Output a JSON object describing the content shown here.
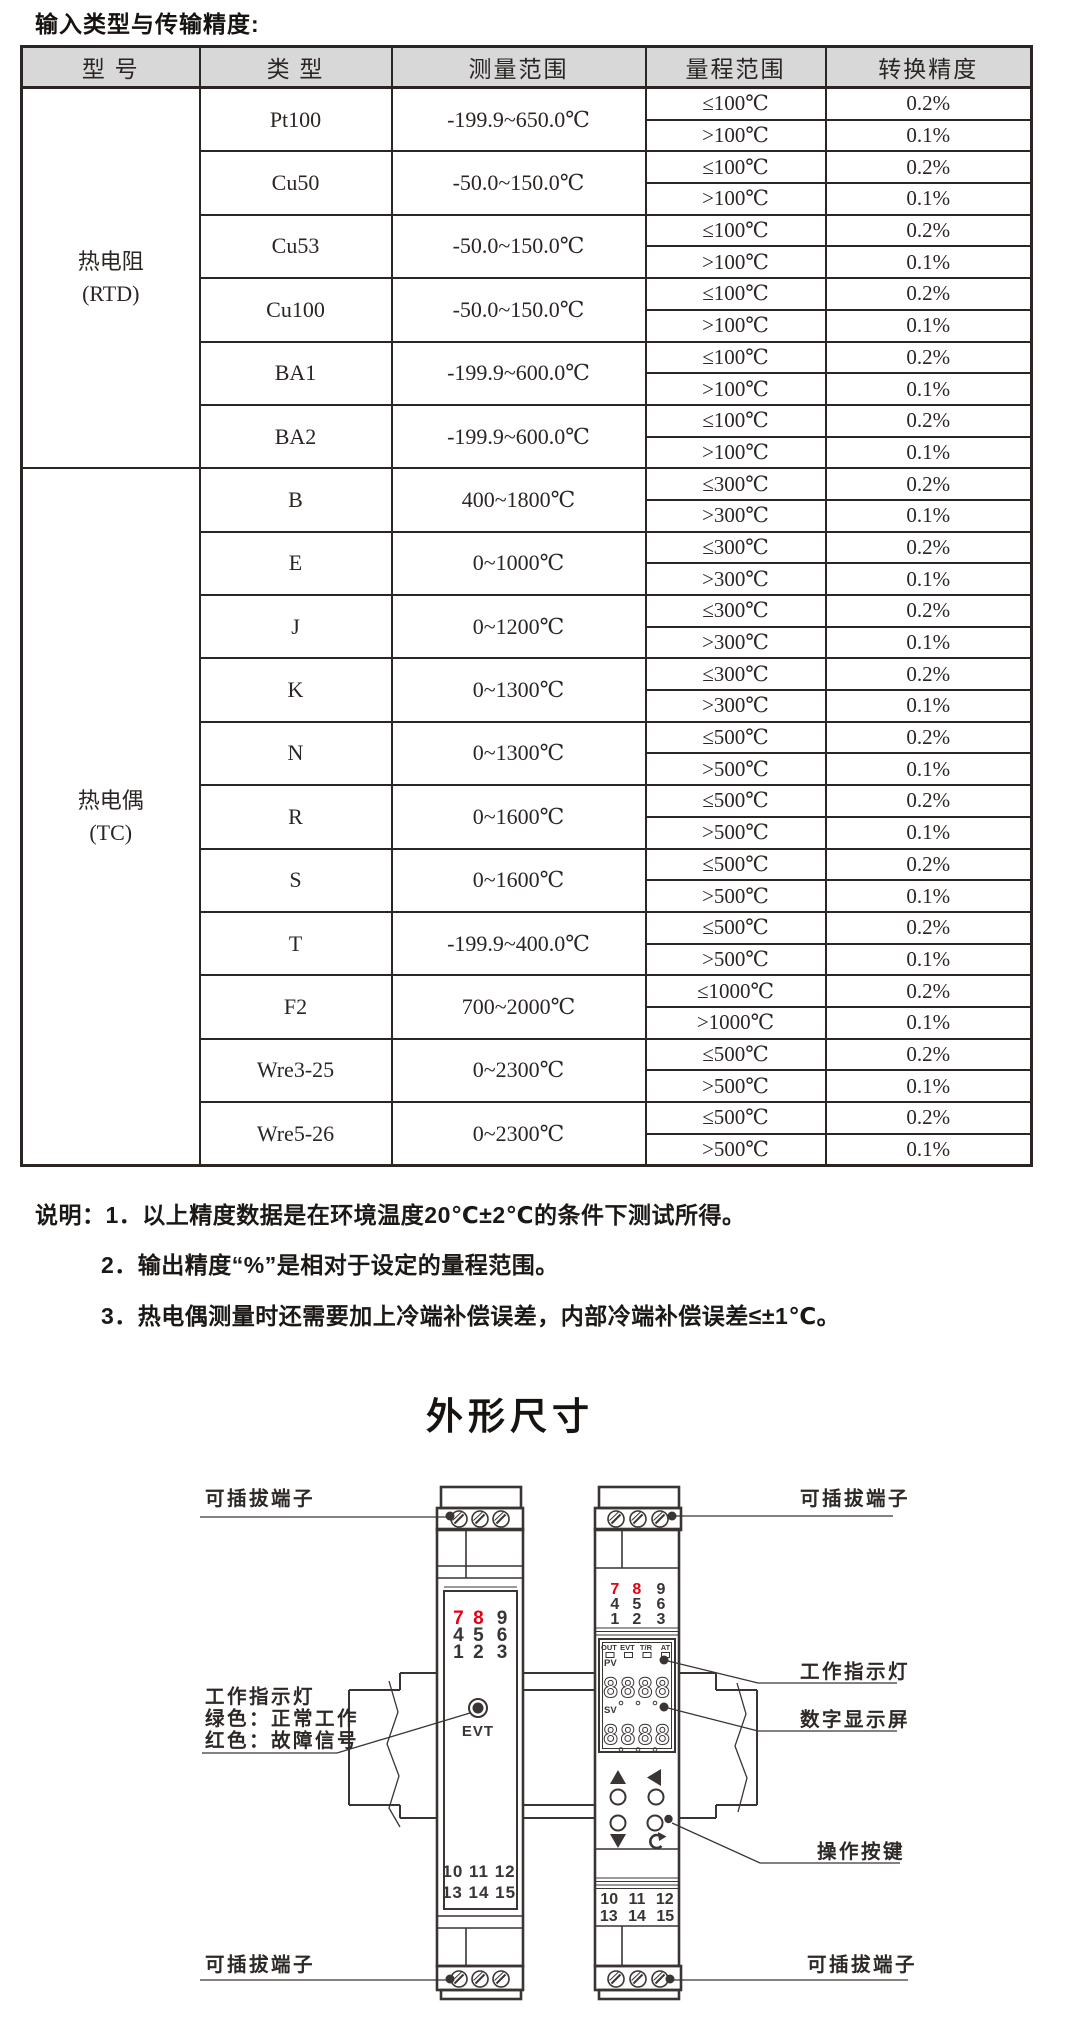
{
  "page": {
    "title": "输入类型与传输精度:",
    "section_title": "外形尺寸"
  },
  "colors": {
    "ink": "#3a3433",
    "accent_red": "#e60012",
    "table_header_bg": "#d8d8d8"
  },
  "table": {
    "headers": [
      "型 号",
      "类 型",
      "测量范围",
      "量程范围",
      "转换精度"
    ],
    "groups": [
      {
        "model": "热电阻\n(RTD)",
        "rows": [
          {
            "type": "Pt100",
            "range": "-199.9~650.0℃",
            "spans": [
              [
                "≤100℃",
                "0.2%"
              ],
              [
                ">100℃",
                "0.1%"
              ]
            ]
          },
          {
            "type": "Cu50",
            "range": "-50.0~150.0℃",
            "spans": [
              [
                "≤100℃",
                "0.2%"
              ],
              [
                ">100℃",
                "0.1%"
              ]
            ]
          },
          {
            "type": "Cu53",
            "range": "-50.0~150.0℃",
            "spans": [
              [
                "≤100℃",
                "0.2%"
              ],
              [
                ">100℃",
                "0.1%"
              ]
            ]
          },
          {
            "type": "Cu100",
            "range": "-50.0~150.0℃",
            "spans": [
              [
                "≤100℃",
                "0.2%"
              ],
              [
                ">100℃",
                "0.1%"
              ]
            ]
          },
          {
            "type": "BA1",
            "range": "-199.9~600.0℃",
            "spans": [
              [
                "≤100℃",
                "0.2%"
              ],
              [
                ">100℃",
                "0.1%"
              ]
            ]
          },
          {
            "type": "BA2",
            "range": "-199.9~600.0℃",
            "spans": [
              [
                "≤100℃",
                "0.2%"
              ],
              [
                ">100℃",
                "0.1%"
              ]
            ]
          }
        ]
      },
      {
        "model": "热电偶\n(TC)",
        "rows": [
          {
            "type": "B",
            "range": "400~1800℃",
            "spans": [
              [
                "≤300℃",
                "0.2%"
              ],
              [
                ">300℃",
                "0.1%"
              ]
            ]
          },
          {
            "type": "E",
            "range": "0~1000℃",
            "spans": [
              [
                "≤300℃",
                "0.2%"
              ],
              [
                ">300℃",
                "0.1%"
              ]
            ]
          },
          {
            "type": "J",
            "range": "0~1200℃",
            "spans": [
              [
                "≤300℃",
                "0.2%"
              ],
              [
                ">300℃",
                "0.1%"
              ]
            ]
          },
          {
            "type": "K",
            "range": "0~1300℃",
            "spans": [
              [
                "≤300℃",
                "0.2%"
              ],
              [
                ">300℃",
                "0.1%"
              ]
            ]
          },
          {
            "type": "N",
            "range": "0~1300℃",
            "spans": [
              [
                "≤500℃",
                "0.2%"
              ],
              [
                ">500℃",
                "0.1%"
              ]
            ]
          },
          {
            "type": "R",
            "range": "0~1600℃",
            "spans": [
              [
                "≤500℃",
                "0.2%"
              ],
              [
                ">500℃",
                "0.1%"
              ]
            ]
          },
          {
            "type": "S",
            "range": "0~1600℃",
            "spans": [
              [
                "≤500℃",
                "0.2%"
              ],
              [
                ">500℃",
                "0.1%"
              ]
            ]
          },
          {
            "type": "T",
            "range": "-199.9~400.0℃",
            "spans": [
              [
                "≤500℃",
                "0.2%"
              ],
              [
                ">500℃",
                "0.1%"
              ]
            ]
          },
          {
            "type": "F2",
            "range": "700~2000℃",
            "spans": [
              [
                "≤1000℃",
                "0.2%"
              ],
              [
                ">1000℃",
                "0.1%"
              ]
            ]
          },
          {
            "type": "Wre3-25",
            "range": "0~2300℃",
            "spans": [
              [
                "≤500℃",
                "0.2%"
              ],
              [
                ">500℃",
                "0.1%"
              ]
            ]
          },
          {
            "type": "Wre5-26",
            "range": "0~2300℃",
            "spans": [
              [
                "≤500℃",
                "0.2%"
              ],
              [
                ">500℃",
                "0.1%"
              ]
            ]
          }
        ]
      }
    ]
  },
  "notes": {
    "line1": "说明：1．以上精度数据是在环境温度20℃±2℃的条件下测试所得。",
    "line2": "2．输出精度“%”是相对于设定的量程范围。",
    "line3": "3．热电偶测量时还需要加上冷端补偿误差，内部冷端补偿误差≤±1℃。"
  },
  "diagram": {
    "labels": {
      "pluggable_terminal": "可插拔端子",
      "work_indicator": "工作指示灯",
      "green_normal": "绿色：正常工作",
      "red_fault": "红色：故障信号",
      "digital_display": "数字显示屏",
      "operation_keys": "操作按键"
    },
    "left": {
      "digits": [
        [
          "7",
          "8",
          "9"
        ],
        [
          "4",
          "5",
          "6"
        ],
        [
          "1",
          "2",
          "3"
        ]
      ],
      "bottom": [
        "10 11 12",
        "13 14 15"
      ],
      "led": "EVT"
    },
    "right": {
      "digits": [
        [
          "7",
          "8",
          "9"
        ],
        [
          "4",
          "5",
          "6"
        ],
        [
          "1",
          "2",
          "3"
        ]
      ],
      "bottom": [
        "10 11 12",
        "13 14 15"
      ]
    },
    "display": {
      "indicators": [
        "OUT",
        "EVT",
        "T/R",
        "AT"
      ],
      "pv": "PV",
      "sv": "SV",
      "segments": "8888"
    }
  }
}
